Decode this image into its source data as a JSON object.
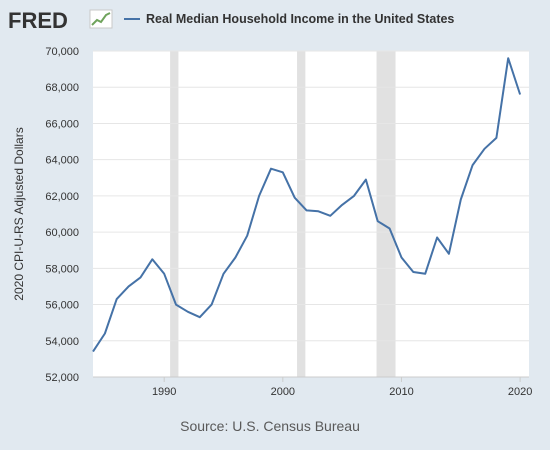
{
  "brand": {
    "logo_text": "FRED"
  },
  "footer": {
    "source": "Source: U.S. Census Bureau"
  },
  "colors": {
    "series": "#4572a7",
    "recession": "#e1e1e1",
    "grid": "#e6e6e6",
    "background": "#e1e9f0",
    "plot": "#ffffff"
  },
  "chart_data": {
    "type": "line",
    "title": "",
    "xlabel": "",
    "ylabel": "2020 CPI-U-RS Adjusted Dollars",
    "ylim": [
      52000,
      70000
    ],
    "xlim": [
      1984,
      2020.75
    ],
    "yticks": [
      52000,
      54000,
      56000,
      58000,
      60000,
      62000,
      64000,
      66000,
      68000,
      70000
    ],
    "ytick_labels": [
      "52,000",
      "54,000",
      "56,000",
      "58,000",
      "60,000",
      "62,000",
      "64,000",
      "66,000",
      "68,000",
      "70,000"
    ],
    "xticks": [
      1990,
      2000,
      2010,
      2020
    ],
    "xtick_labels": [
      "1990",
      "2000",
      "2010",
      "2020"
    ],
    "grid": "horizontal",
    "legend_position": "top",
    "recessions": [
      [
        1990.5,
        1991.2
      ],
      [
        2001.2,
        2001.9
      ],
      [
        2007.9,
        2009.5
      ]
    ],
    "series": [
      {
        "name": "Real Median Household Income in the United States",
        "x": [
          1984,
          1985,
          1986,
          1987,
          1988,
          1989,
          1990,
          1991,
          1992,
          1993,
          1994,
          1995,
          1996,
          1997,
          1998,
          1999,
          2000,
          2001,
          2002,
          2003,
          2004,
          2005,
          2006,
          2007,
          2008,
          2009,
          2010,
          2011,
          2012,
          2013,
          2014,
          2015,
          2016,
          2017,
          2018,
          2019,
          2020
        ],
        "values": [
          53400,
          54400,
          56300,
          57000,
          57500,
          58500,
          57700,
          56000,
          55600,
          55300,
          56000,
          57700,
          58600,
          59800,
          62000,
          63500,
          63300,
          61900,
          61200,
          61150,
          60900,
          61500,
          62000,
          62900,
          60600,
          60200,
          58600,
          57800,
          57700,
          59700,
          58800,
          61800,
          63700,
          64600,
          65200,
          69600,
          67600
        ]
      }
    ]
  }
}
